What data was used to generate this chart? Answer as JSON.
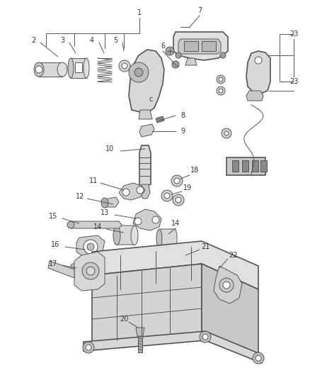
{
  "bg_color": "#ffffff",
  "line_color": "#555555",
  "label_color": "#333333",
  "outline_color": "#555555",
  "fig_width": 4.38,
  "fig_height": 5.33,
  "dpi": 100,
  "lw_main": 1.2,
  "lw_thin": 0.7,
  "label_fs": 7.0,
  "xlim": [
    0,
    438
  ],
  "ylim": [
    0,
    533
  ]
}
